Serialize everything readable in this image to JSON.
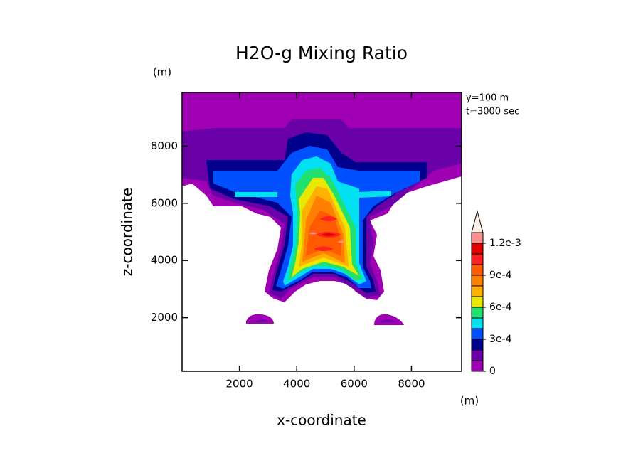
{
  "chart_data": {
    "type": "contour",
    "title": "H2O-g Mixing Ratio",
    "xlabel": "x-coordinate",
    "ylabel": "z-coordinate",
    "x_unit": "(m)",
    "y_unit": "(m)",
    "annotations": [
      "y=100 m",
      "t=3000 sec"
    ],
    "xlim": [
      0,
      9750
    ],
    "ylim": [
      125,
      9875
    ],
    "xticks": [
      2000,
      4000,
      6000,
      8000
    ],
    "yticks": [
      2000,
      4000,
      6000,
      8000
    ],
    "levels": [
      0,
      0.0001,
      0.0002,
      0.0003,
      0.0004,
      0.0005,
      0.0006,
      0.0007,
      0.0008,
      0.0009,
      0.001,
      0.0011,
      0.0012,
      0.0013
    ],
    "colors": [
      "#a000b4",
      "#6a00a8",
      "#00008c",
      "#0050ff",
      "#00e0f0",
      "#20e070",
      "#e8e800",
      "#ffb000",
      "#ff8000",
      "#ff5a00",
      "#ff2020",
      "#e00000",
      "#ff9090",
      "#fff0e8"
    ],
    "colorbar_ticks": [
      0,
      {
        "value": 0.0003,
        "label": "3e-4"
      },
      {
        "value": 0.0006,
        "label": "6e-4"
      },
      {
        "value": 0.0009,
        "label": "9e-4"
      },
      {
        "value": 0.0012,
        "label": "1.2e-3"
      }
    ]
  }
}
